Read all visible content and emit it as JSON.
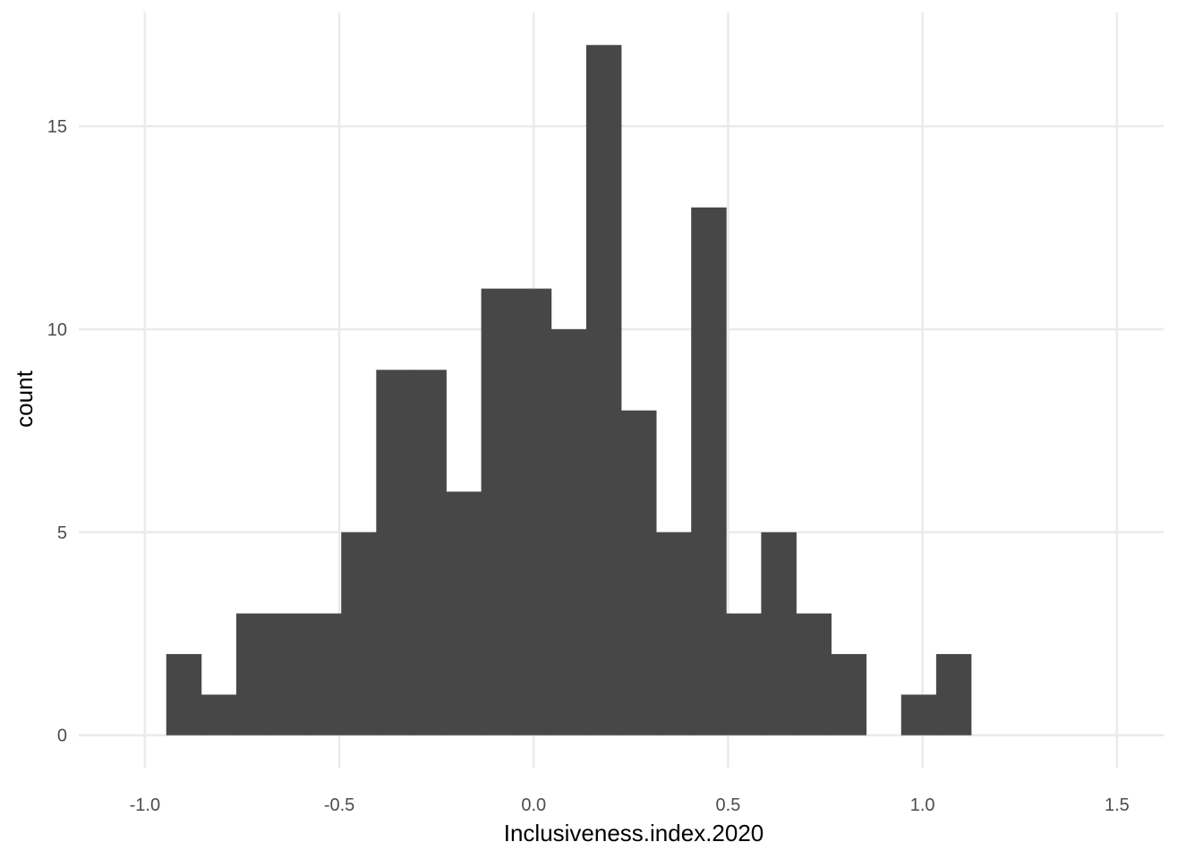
{
  "chart_data": {
    "type": "bar",
    "subtype": "histogram",
    "title": "",
    "xlabel": "Inclusiveness.index.2020",
    "ylabel": "count",
    "xlim": [
      -1.17,
      1.62
    ],
    "ylim": [
      -0.8,
      17.8
    ],
    "x_ticks": [
      -1.0,
      -0.5,
      0.0,
      0.5,
      1.0,
      1.5
    ],
    "x_tick_labels": [
      "-1.0",
      "-0.5",
      "0.0",
      "0.5",
      "1.0",
      "1.5"
    ],
    "y_ticks": [
      0,
      5,
      10,
      15
    ],
    "y_tick_labels": [
      "0",
      "5",
      "10",
      "15"
    ],
    "bin_width": 0.09,
    "bin_start": -0.945,
    "counts": [
      2,
      1,
      3,
      3,
      3,
      5,
      9,
      9,
      6,
      11,
      11,
      10,
      17,
      8,
      5,
      13,
      3,
      5,
      3,
      2,
      0,
      1,
      2
    ],
    "grid": true,
    "bar_color": "#474747",
    "grid_color": "#ebebeb",
    "background": "#ffffff"
  }
}
